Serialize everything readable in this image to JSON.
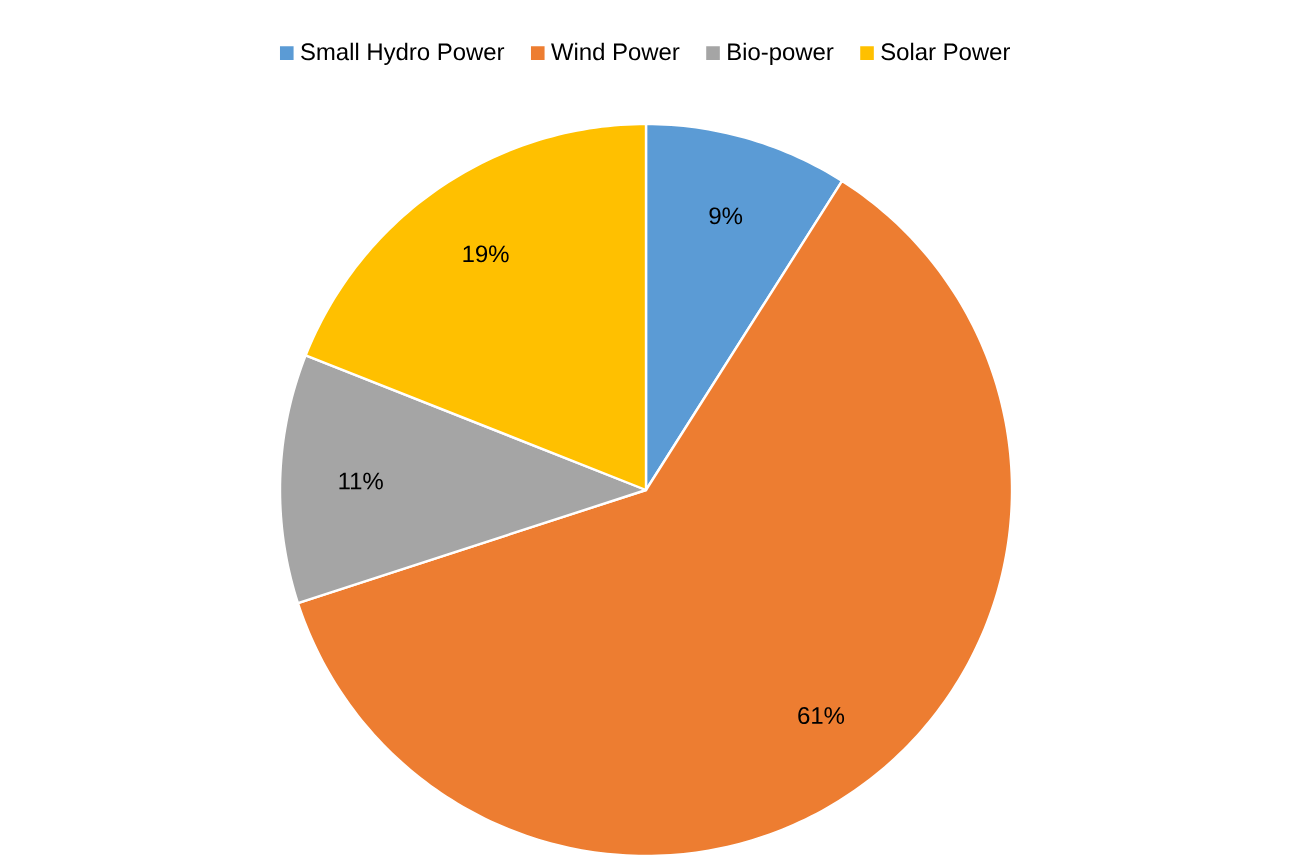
{
  "chart_data": {
    "type": "pie",
    "categories": [
      "Small Hydro Power",
      "Wind Power",
      "Bio-power",
      "Solar Power"
    ],
    "values": [
      9,
      61,
      11,
      19
    ],
    "colors": [
      "#5b9bd5",
      "#ed7d31",
      "#a5a5a5",
      "#ffc000"
    ],
    "value_labels": [
      "9%",
      "61%",
      "11%",
      "19%"
    ],
    "legend": "top"
  }
}
